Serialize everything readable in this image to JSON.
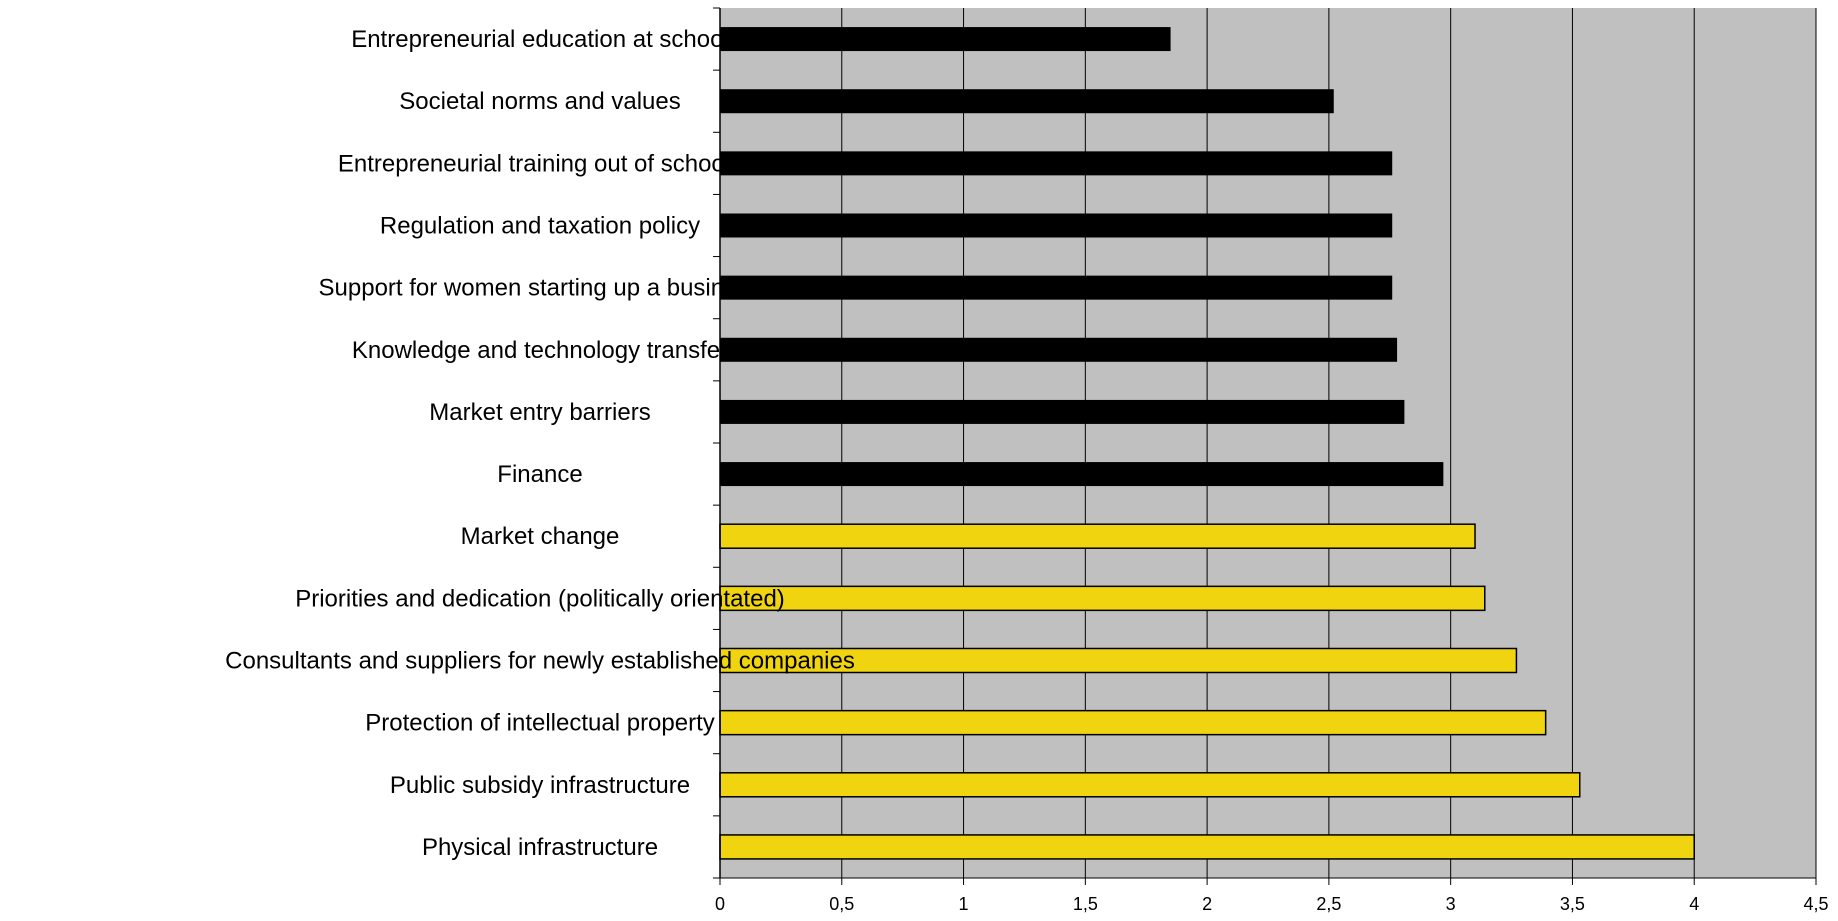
{
  "chart_data": {
    "type": "bar",
    "orientation": "horizontal",
    "title": "",
    "xlabel": "",
    "ylabel": "",
    "xlim": [
      0,
      4.5
    ],
    "x_ticks": [
      "0",
      "0,5",
      "1",
      "1,5",
      "2",
      "2,5",
      "3",
      "3,5",
      "4",
      "4,5"
    ],
    "grid": "vertical",
    "plot_background": "#c0c0c0",
    "categories": [
      "Entrepreneurial education at school",
      "Societal norms and values",
      "Entrepreneurial training out of schools",
      "Regulation and taxation policy",
      "Support for women starting up a business",
      "Knowledge and technology transfer",
      "Market entry barriers",
      "Finance",
      "Market change",
      "Priorities and dedication (politically orientated)",
      "Consultants and suppliers for newly established companies",
      "Protection of intellectual property",
      "Public subsidy infrastructure",
      "Physical infrastructure"
    ],
    "values": [
      1.85,
      2.52,
      2.76,
      2.76,
      2.76,
      2.78,
      2.81,
      2.97,
      3.1,
      3.14,
      3.27,
      3.39,
      3.53,
      4.0
    ],
    "bar_colors": [
      "#000000",
      "#000000",
      "#000000",
      "#000000",
      "#000000",
      "#000000",
      "#000000",
      "#000000",
      "#f0d410",
      "#f0d410",
      "#f0d410",
      "#f0d410",
      "#f0d410",
      "#f0d410"
    ]
  }
}
